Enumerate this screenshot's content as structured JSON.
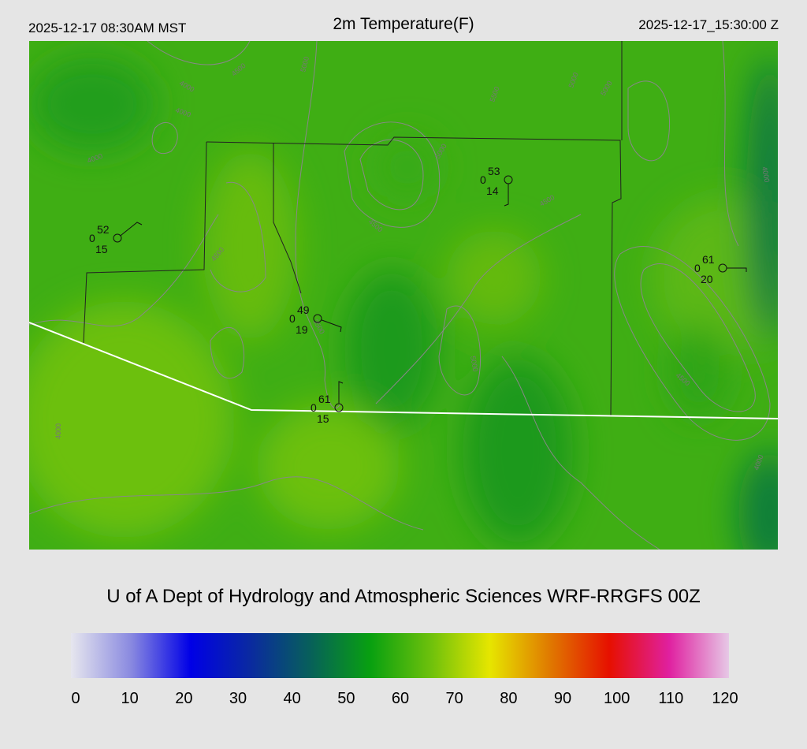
{
  "header": {
    "local_time": "2025-12-17 08:30AM MST",
    "title": "2m Temperature(F)",
    "utc_time": "2025-12-17_15:30:00 Z"
  },
  "credit": "U of A Dept of Hydrology and Atmospheric Sciences WRF-RRGFS 00Z",
  "colorbar": {
    "ticks": [
      "0",
      "10",
      "20",
      "30",
      "40",
      "50",
      "60",
      "70",
      "80",
      "90",
      "100",
      "110",
      "120"
    ],
    "colors": [
      "#e6e6ee",
      "#8a8ae0",
      "#0000e6",
      "#0a2aa0",
      "#07605a",
      "#08a010",
      "#6cc00c",
      "#e6e600",
      "#e07a00",
      "#e61000",
      "#e020a0",
      "#e6c8e6"
    ]
  },
  "stations": [
    {
      "temp": "52",
      "precip": "0",
      "dewpoint": "15"
    },
    {
      "temp": "53",
      "precip": "0",
      "dewpoint": "14"
    },
    {
      "temp": "49",
      "precip": "0",
      "dewpoint": "19"
    },
    {
      "temp": "61",
      "precip": "0",
      "dewpoint": "15"
    },
    {
      "temp": "61",
      "precip": "0",
      "dewpoint": "20"
    }
  ],
  "contour_labels": [
    "4000",
    "4500",
    "5000",
    "3500",
    "4000",
    "4500",
    "5500",
    "5000",
    "4500",
    "4000",
    "5000",
    "4500",
    "4000",
    "5000",
    "4000",
    "5000",
    "4500",
    "4000"
  ]
}
